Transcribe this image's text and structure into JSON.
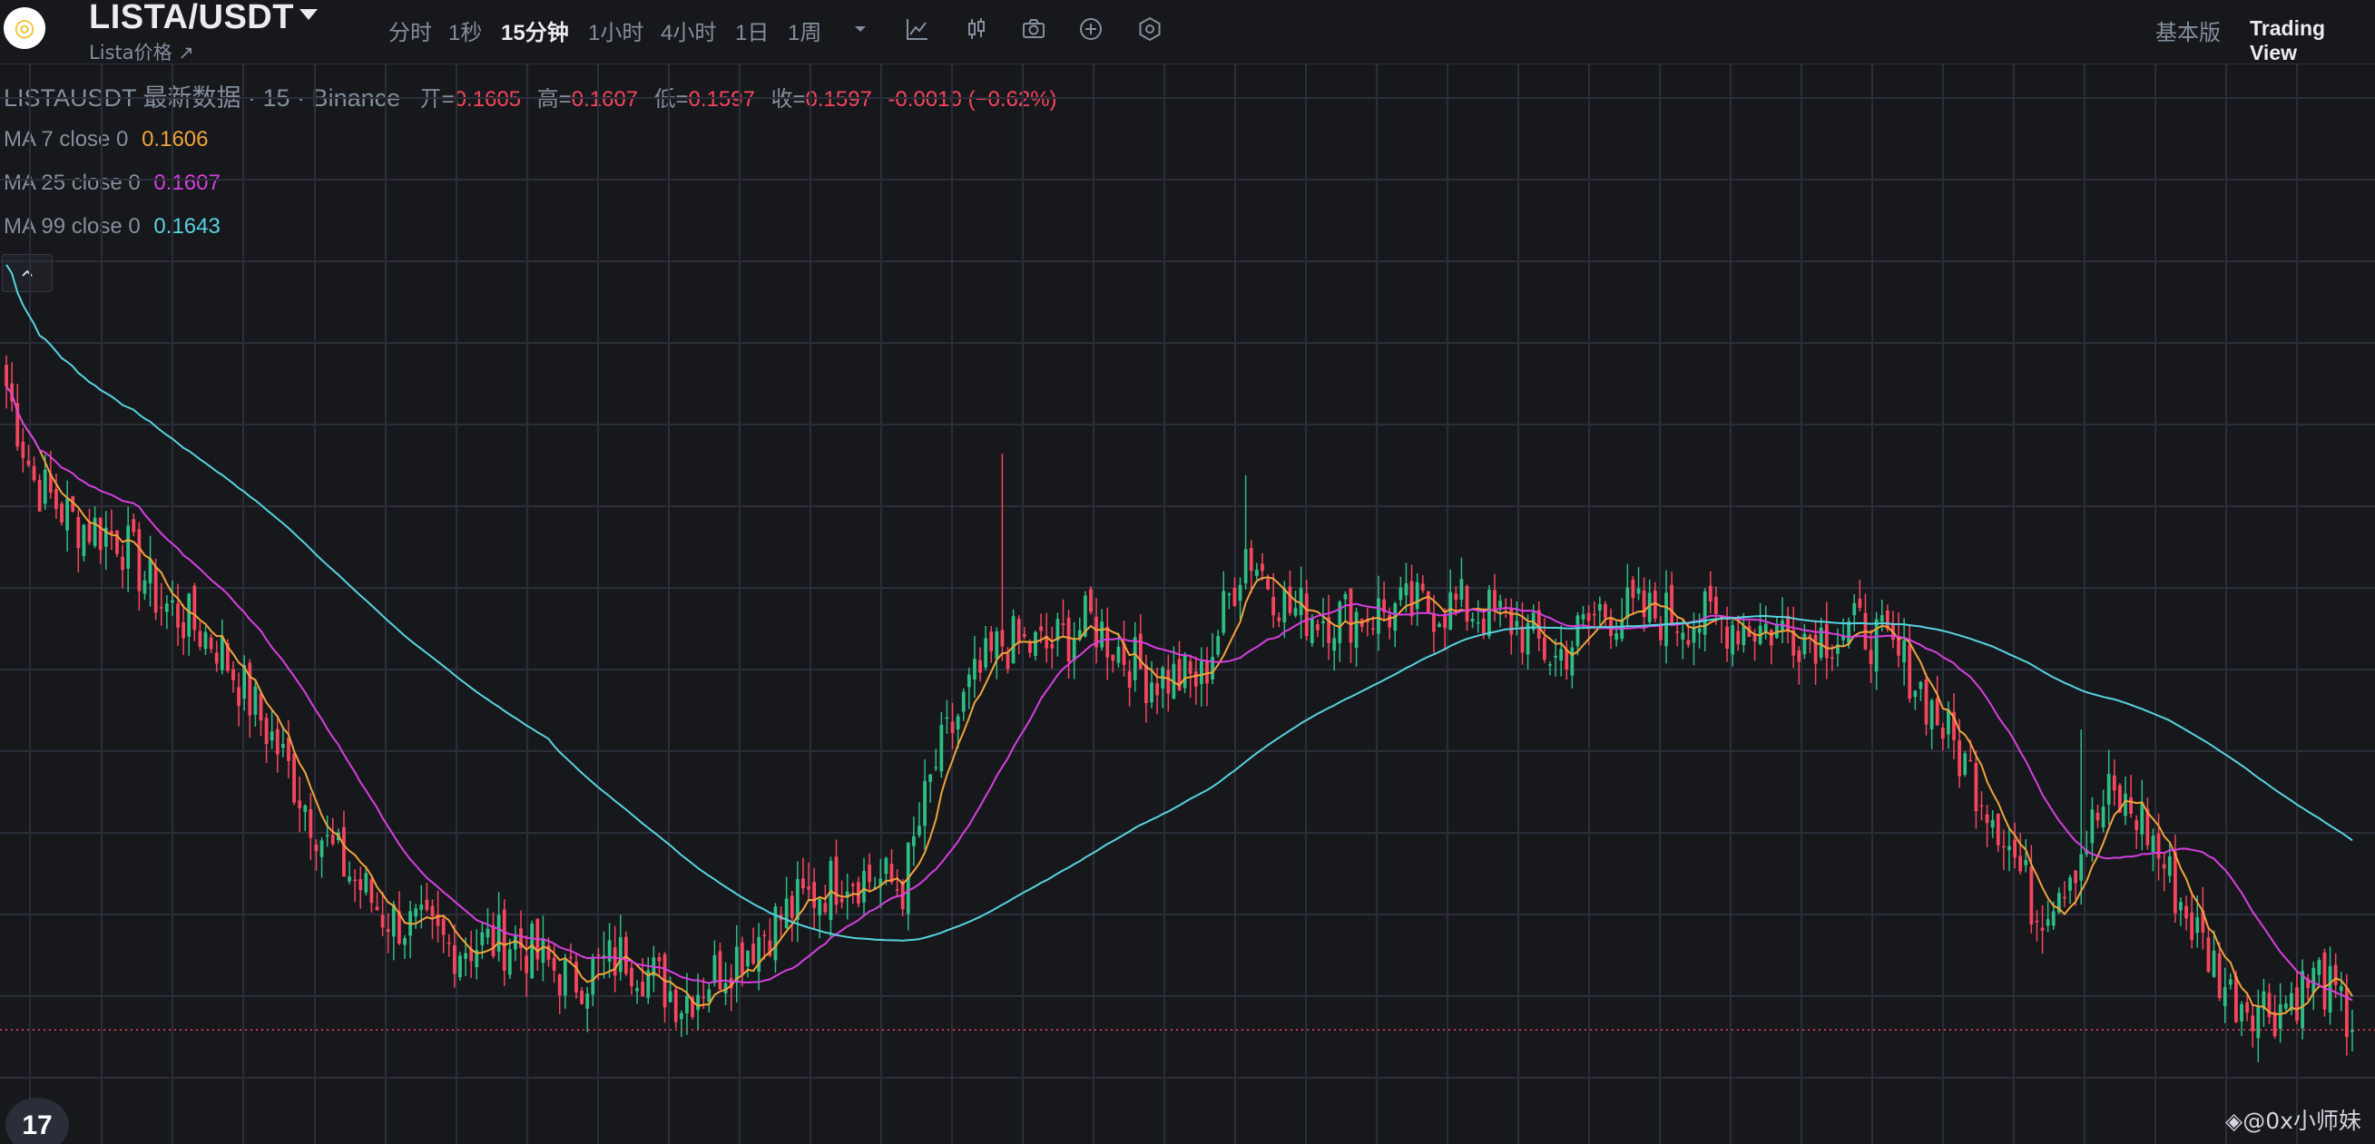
{
  "header": {
    "logo_icon": "binance-circle-logo",
    "pair": "LISTA/USDT",
    "subtitle": "Lista价格 ↗",
    "timeframes": [
      "分时",
      "1秒",
      "15分钟",
      "1小时",
      "4小时",
      "1日",
      "1周"
    ],
    "active_timeframe": "15分钟",
    "tools": [
      "chevron-down-icon",
      "indicator-icon",
      "candle-style-icon",
      "camera-icon",
      "plus-circle-icon",
      "settings-hex-icon"
    ],
    "right": {
      "basic": "基本版",
      "tradingview": "Trading View"
    }
  },
  "legend": {
    "symbol": "LISTAUSDT 最新数据 · 15 · Binance",
    "open_label": "开=",
    "open": "0.1605",
    "high_label": "高=",
    "high": "0.1607",
    "low_label": "低=",
    "low": "0.1597",
    "close_label": "收=",
    "close": "0.1597",
    "change": "-0.0010 (−0.62%)",
    "ma": [
      {
        "label": "MA 7 close 0",
        "value": "0.1606",
        "color": "#f0a33b"
      },
      {
        "label": "MA 25 close 0",
        "value": "0.1607",
        "color": "#d63fdf"
      },
      {
        "label": "MA 99 close 0",
        "value": "0.1643",
        "color": "#57d3e0"
      }
    ]
  },
  "colors": {
    "background": "#17181c",
    "grid": "#2a2e39",
    "up": "#2ebd85",
    "down": "#f6465d",
    "ma7": "#f0a33b",
    "ma25": "#d63fdf",
    "ma99": "#57d3e0",
    "last_price_line": "#f6465d"
  },
  "watermark": "◈@0x小师妹",
  "tv_badge": "17",
  "chart_data": {
    "type": "candlestick",
    "interval": "15",
    "symbol": "LISTAUSDT",
    "exchange": "Binance",
    "price_range": [
      0.1585,
      0.187
    ],
    "last_price": 0.1597,
    "grid": true,
    "candles": [],
    "keypoints_close": [
      [
        0,
        0.1835
      ],
      [
        5,
        0.18
      ],
      [
        12,
        0.1785
      ],
      [
        20,
        0.178
      ],
      [
        28,
        0.1755
      ],
      [
        38,
        0.174
      ],
      [
        48,
        0.1705
      ],
      [
        58,
        0.1665
      ],
      [
        68,
        0.164
      ],
      [
        80,
        0.1628
      ],
      [
        92,
        0.163
      ],
      [
        102,
        0.1615
      ],
      [
        112,
        0.1625
      ],
      [
        122,
        0.1608
      ],
      [
        132,
        0.1625
      ],
      [
        142,
        0.1642
      ],
      [
        152,
        0.1655
      ],
      [
        162,
        0.165
      ],
      [
        168,
        0.1695
      ],
      [
        174,
        0.1722
      ],
      [
        180,
        0.174
      ],
      [
        188,
        0.1738
      ],
      [
        196,
        0.1748
      ],
      [
        206,
        0.1728
      ],
      [
        216,
        0.1726
      ],
      [
        224,
        0.1775
      ],
      [
        232,
        0.1752
      ],
      [
        240,
        0.175
      ],
      [
        252,
        0.1752
      ],
      [
        262,
        0.1754
      ],
      [
        272,
        0.1748
      ],
      [
        280,
        0.1734
      ],
      [
        288,
        0.1752
      ],
      [
        300,
        0.175
      ],
      [
        310,
        0.1748
      ],
      [
        320,
        0.1745
      ],
      [
        328,
        0.1743
      ],
      [
        336,
        0.1745
      ],
      [
        344,
        0.173
      ],
      [
        352,
        0.1702
      ],
      [
        360,
        0.1675
      ],
      [
        367,
        0.164
      ],
      [
        374,
        0.166
      ],
      [
        380,
        0.1683
      ],
      [
        386,
        0.1675
      ],
      [
        394,
        0.164
      ],
      [
        402,
        0.161
      ],
      [
        410,
        0.1605
      ],
      [
        418,
        0.1617
      ],
      [
        424,
        0.1597
      ]
    ],
    "spikes": [
      {
        "i": 180,
        "high": 0.181
      },
      {
        "i": 224,
        "high": 0.1802
      },
      {
        "i": 246,
        "high": 0.1753
      },
      {
        "i": 375,
        "high": 0.1708
      }
    ],
    "ma_windows": [
      7,
      25,
      99
    ]
  }
}
